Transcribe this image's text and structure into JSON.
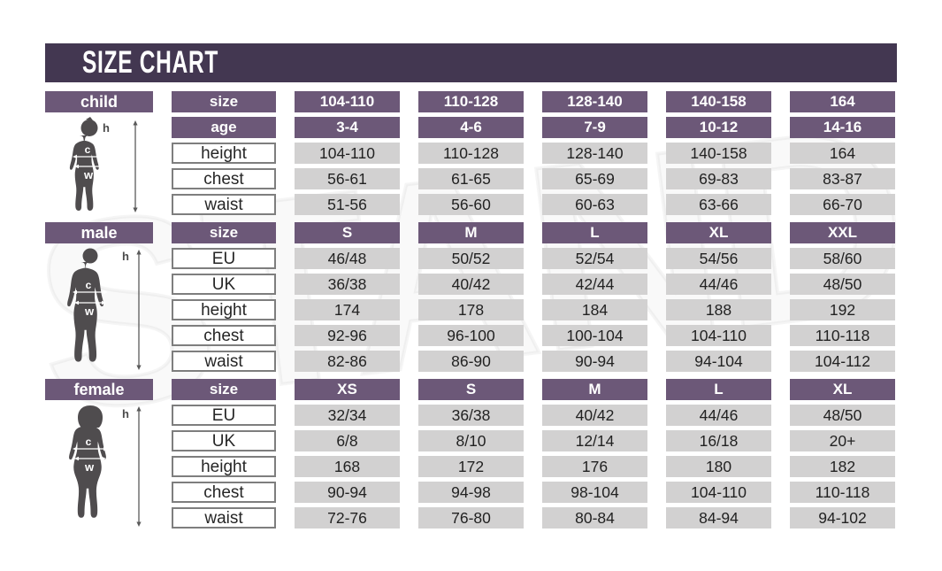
{
  "title": "SIZE CHART",
  "watermark": {
    "text": "STAND"
  },
  "colors": {
    "banner": "#433751",
    "header_purple": "#6c5878",
    "value_gray": "#d2d1d1",
    "silhouette_gray": "#4f4c4e"
  },
  "chart_data": [
    {
      "type": "table",
      "group": "child",
      "section_label": "child",
      "figure_marks": {
        "height": "h",
        "chest": "c",
        "waist": "w"
      },
      "rows": [
        {
          "label": "size",
          "style": "header",
          "values": [
            "104-110",
            "110-128",
            "128-140",
            "140-158",
            "164"
          ]
        },
        {
          "label": "age",
          "style": "header",
          "values": [
            "3-4",
            "4-6",
            "7-9",
            "10-12",
            "14-16"
          ]
        },
        {
          "label": "height",
          "style": "data",
          "values": [
            "104-110",
            "110-128",
            "128-140",
            "140-158",
            "164"
          ]
        },
        {
          "label": "chest",
          "style": "data",
          "values": [
            "56-61",
            "61-65",
            "65-69",
            "69-83",
            "83-87"
          ]
        },
        {
          "label": "waist",
          "style": "data",
          "values": [
            "51-56",
            "56-60",
            "60-63",
            "63-66",
            "66-70"
          ]
        }
      ]
    },
    {
      "type": "table",
      "group": "male",
      "section_label": "male",
      "figure_marks": {
        "height": "h",
        "chest": "c",
        "waist": "w"
      },
      "rows": [
        {
          "label": "size",
          "style": "header",
          "values": [
            "S",
            "M",
            "L",
            "XL",
            "XXL"
          ]
        },
        {
          "label": "EU",
          "style": "data",
          "values": [
            "46/48",
            "50/52",
            "52/54",
            "54/56",
            "58/60"
          ]
        },
        {
          "label": "UK",
          "style": "data",
          "values": [
            "36/38",
            "40/42",
            "42/44",
            "44/46",
            "48/50"
          ]
        },
        {
          "label": "height",
          "style": "data",
          "values": [
            "174",
            "178",
            "184",
            "188",
            "192"
          ]
        },
        {
          "label": "chest",
          "style": "data",
          "values": [
            "92-96",
            "96-100",
            "100-104",
            "104-110",
            "110-118"
          ]
        },
        {
          "label": "waist",
          "style": "data",
          "values": [
            "82-86",
            "86-90",
            "90-94",
            "94-104",
            "104-112"
          ]
        }
      ]
    },
    {
      "type": "table",
      "group": "female",
      "section_label": "female",
      "figure_marks": {
        "height": "h",
        "chest": "c",
        "waist": "w"
      },
      "rows": [
        {
          "label": "size",
          "style": "header",
          "values": [
            "XS",
            "S",
            "M",
            "L",
            "XL"
          ]
        },
        {
          "label": "EU",
          "style": "data",
          "values": [
            "32/34",
            "36/38",
            "40/42",
            "44/46",
            "48/50"
          ]
        },
        {
          "label": "UK",
          "style": "data",
          "values": [
            "6/8",
            "8/10",
            "12/14",
            "16/18",
            "20+"
          ]
        },
        {
          "label": "height",
          "style": "data",
          "values": [
            "168",
            "172",
            "176",
            "180",
            "182"
          ]
        },
        {
          "label": "chest",
          "style": "data",
          "values": [
            "90-94",
            "94-98",
            "98-104",
            "104-110",
            "110-118"
          ]
        },
        {
          "label": "waist",
          "style": "data",
          "values": [
            "72-76",
            "76-80",
            "80-84",
            "84-94",
            "94-102"
          ]
        }
      ]
    }
  ]
}
